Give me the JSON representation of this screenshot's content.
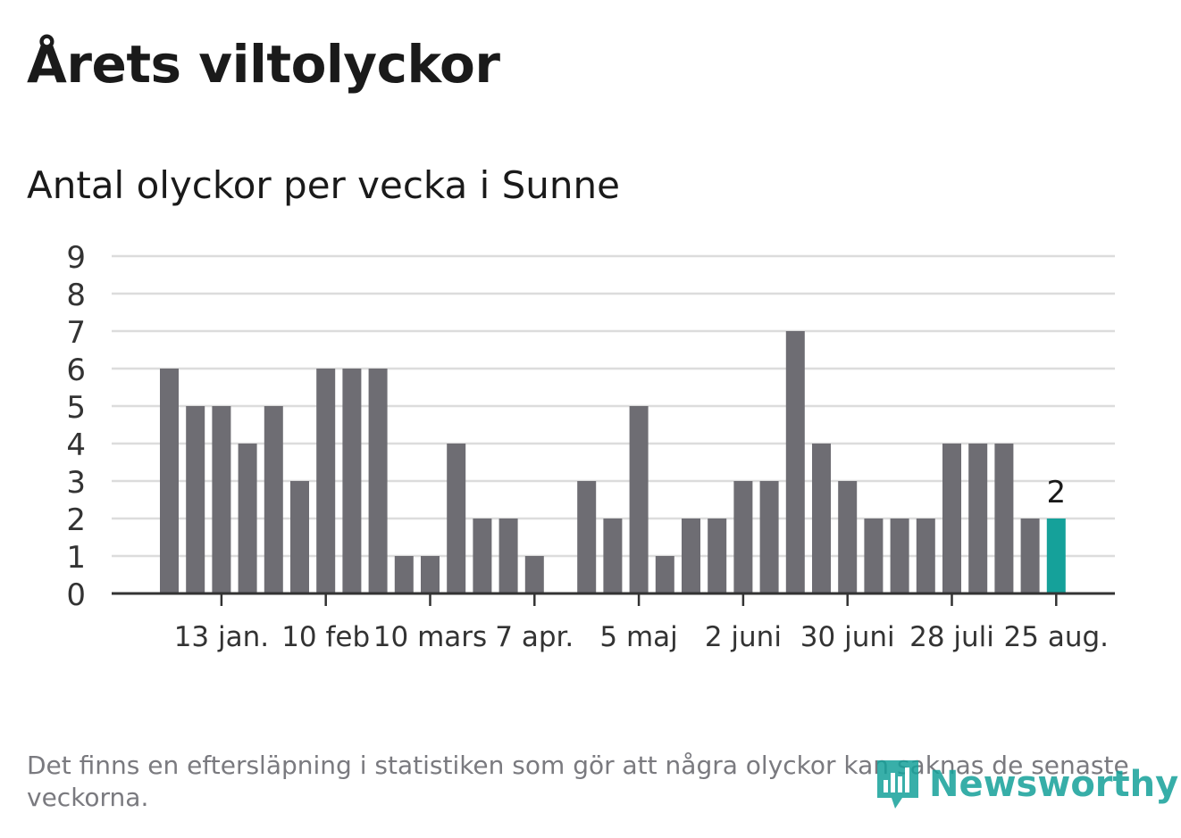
{
  "title": "Årets viltolyckor",
  "subtitle": "Antal olyckor per vecka i Sunne",
  "footnote": "Det finns en eftersläpning i statistiken som gör att några olyckor kan saknas de senaste veckorna.",
  "logo": {
    "text": "Newsworthy",
    "icon": "newsworthy-logo-icon",
    "color": "#15a19a"
  },
  "colors": {
    "bar": "#6e6d73",
    "highlight": "#15a19a",
    "grid": "#dcdcdc",
    "axis": "#333333"
  },
  "chart_data": {
    "type": "bar",
    "title": "Antal olyckor per vecka i Sunne",
    "xlabel": "",
    "ylabel": "",
    "ylim": [
      0,
      9
    ],
    "yticks": [
      "0",
      "1",
      "2",
      "3",
      "4",
      "5",
      "6",
      "7",
      "8",
      "9"
    ],
    "xtick_labels": [
      {
        "label": "13 jan.",
        "week": 2
      },
      {
        "label": "10 feb",
        "week": 6
      },
      {
        "label": "10 mars",
        "week": 10
      },
      {
        "label": "7 apr.",
        "week": 14
      },
      {
        "label": "5 maj",
        "week": 18
      },
      {
        "label": "2 juni",
        "week": 22
      },
      {
        "label": "30 juni",
        "week": 26
      },
      {
        "label": "28 juli",
        "week": 30
      },
      {
        "label": "25 aug.",
        "week": 34
      }
    ],
    "values": [
      6,
      5,
      5,
      4,
      5,
      3,
      6,
      6,
      6,
      1,
      1,
      4,
      2,
      2,
      1,
      0,
      3,
      2,
      5,
      1,
      2,
      2,
      3,
      3,
      7,
      4,
      3,
      2,
      2,
      2,
      4,
      4,
      4,
      2,
      2
    ],
    "highlight_last": true,
    "annotations": [
      {
        "text": "2",
        "bar": "last"
      }
    ],
    "grid": true
  }
}
